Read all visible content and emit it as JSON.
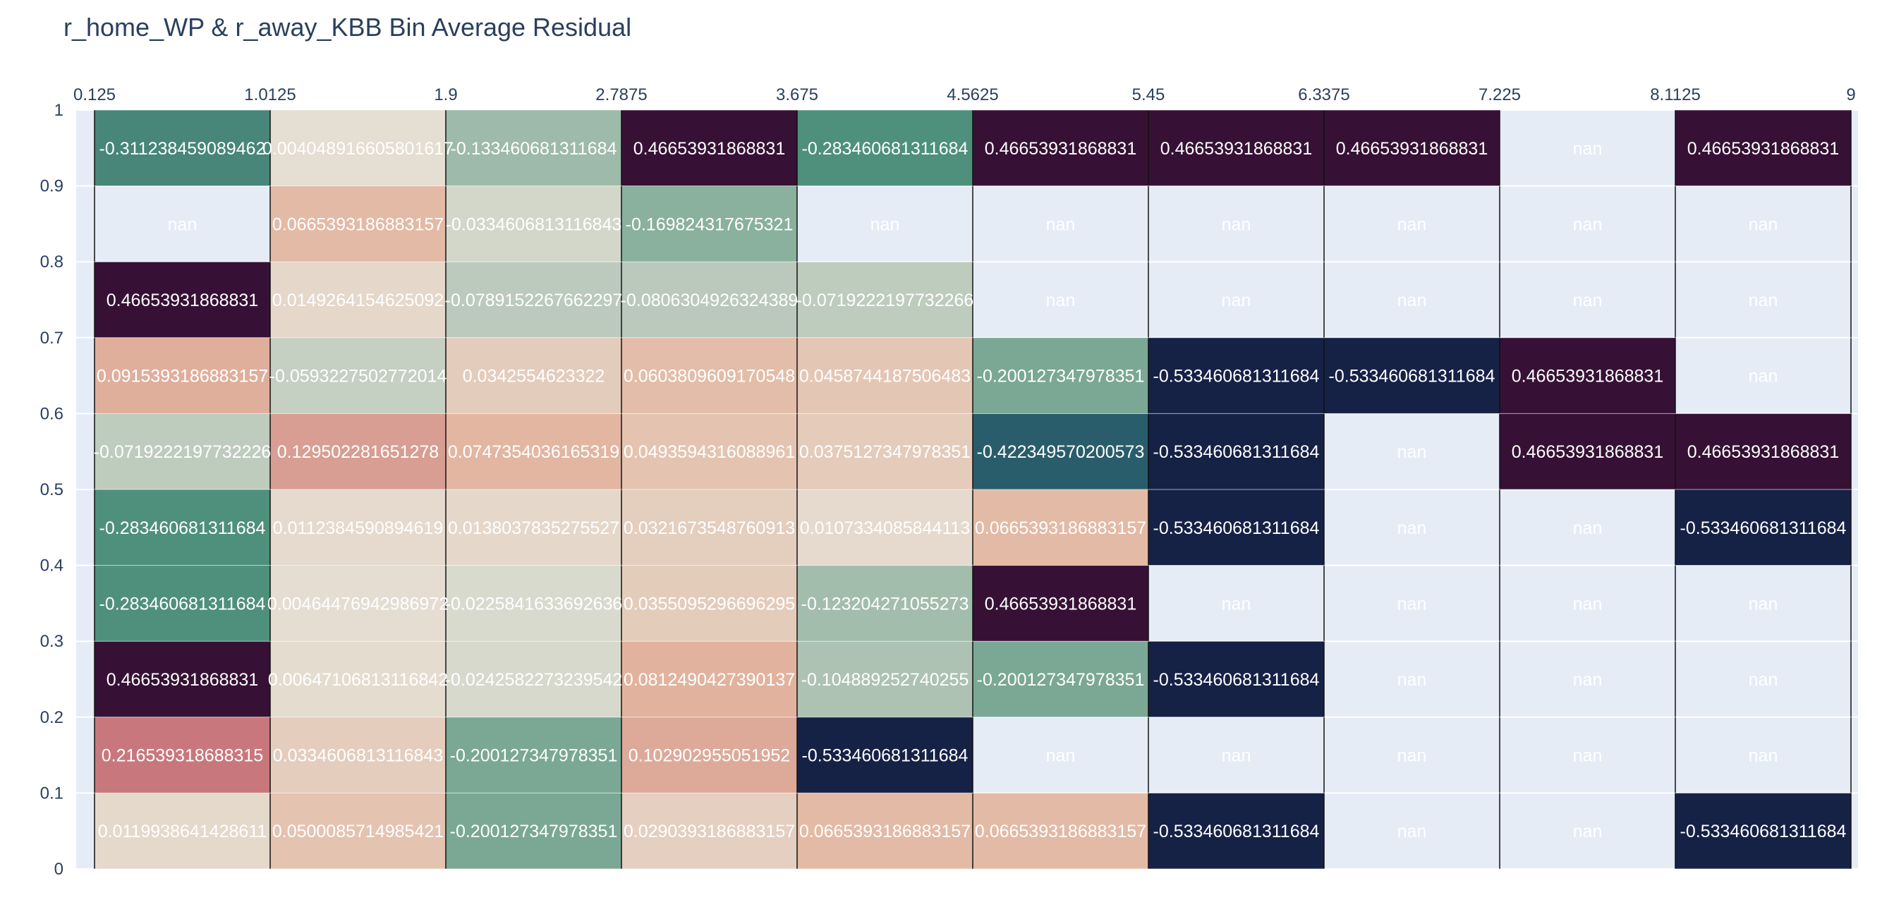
{
  "chart_data": {
    "type": "heatmap",
    "title": "r_home_WP & r_away_KBB Bin Average Residual",
    "xlabel": "",
    "ylabel": "",
    "x_ticks": [
      "0.125",
      "1.0125",
      "1.9",
      "2.7875",
      "3.675",
      "4.5625",
      "5.45",
      "6.3375",
      "7.225",
      "8.1125",
      "9"
    ],
    "x_tick_values": [
      0.125,
      1.0125,
      1.9,
      2.7875,
      3.675,
      4.5625,
      5.45,
      6.3375,
      7.225,
      8.1125,
      9
    ],
    "y_ticks": [
      "0",
      "0.1",
      "0.2",
      "0.3",
      "0.4",
      "0.5",
      "0.6",
      "0.7",
      "0.8",
      "0.9",
      "1"
    ],
    "y_tick_values": [
      0,
      0.1,
      0.2,
      0.3,
      0.4,
      0.5,
      0.6,
      0.7,
      0.8,
      0.9,
      1
    ],
    "x_axis_side": "top",
    "xlim": [
      0.125,
      9
    ],
    "ylim": [
      0,
      1
    ],
    "grid": true,
    "colorscale": "curl (diverging)",
    "missing_label": "nan",
    "colors": {
      "plot_bg": "#e5ecf6",
      "grid": "#ffffff",
      "text": "#2a3f5f",
      "cell_text": "#ffffff",
      "neg_strong": "#151d44",
      "neg_mid": "#2a5e6c",
      "neg_light": "#4f917b",
      "neutral": "#e5e0d5",
      "pos_light": "#e3b8a2",
      "pos_mid": "#c7777b",
      "pos_strong": "#341034"
    },
    "rows_top_to_bottom": [
      {
        "y_bin": "0.9–1",
        "cells": [
          "-0.311238459089462",
          "0.004048916605801617",
          "-0.133460681311684",
          "0.46653931868831",
          "-0.283460681311684",
          "0.46653931868831",
          "0.46653931868831",
          "0.46653931868831",
          "nan",
          "0.46653931868831"
        ]
      },
      {
        "y_bin": "0.8–0.9",
        "cells": [
          "nan",
          "0.0665393186883157",
          "-0.0334606813116843",
          "-0.169824317675321",
          "nan",
          "nan",
          "nan",
          "nan",
          "nan",
          "nan"
        ]
      },
      {
        "y_bin": "0.7–0.8",
        "cells": [
          "0.46653931868831",
          "0.0149264154625092",
          "-0.0789152267662297",
          "-0.0806304926324389",
          "-0.0719222197732266",
          "nan",
          "nan",
          "nan",
          "nan",
          "nan"
        ]
      },
      {
        "y_bin": "0.6–0.7",
        "cells": [
          "0.0915393186883157",
          "-0.0593227502772014",
          "0.0342554623322",
          "0.0603809609170548",
          "0.0458744187506483",
          "-0.200127347978351",
          "-0.533460681311684",
          "-0.533460681311684",
          "0.46653931868831",
          "nan"
        ]
      },
      {
        "y_bin": "0.5–0.6",
        "cells": [
          "-0.0719222197732226",
          "0.129502281651278",
          "0.0747354036165319",
          "0.0493594316088961",
          "0.0375127347978351",
          "-0.422349570200573",
          "-0.533460681311684",
          "nan",
          "0.46653931868831",
          "0.46653931868831"
        ]
      },
      {
        "y_bin": "0.4–0.5",
        "cells": [
          "-0.283460681311684",
          "0.0112384590894619",
          "0.0138037835275527",
          "0.0321673548760913",
          "0.0107334085844113",
          "0.0665393186883157",
          "-0.533460681311684",
          "nan",
          "nan",
          "-0.533460681311684"
        ]
      },
      {
        "y_bin": "0.3–0.4",
        "cells": [
          "-0.283460681311684",
          "0.00464476942986972",
          "-0.0225841633692636",
          "0.0355095296696295",
          "-0.123204271055273",
          "0.46653931868831",
          "nan",
          "nan",
          "nan",
          "nan"
        ]
      },
      {
        "y_bin": "0.2–0.3",
        "cells": [
          "0.46653931868831",
          "0.00647106813116842",
          "-0.0242582273239542",
          "0.0812490427390137",
          "-0.104889252740255",
          "-0.200127347978351",
          "-0.533460681311684",
          "nan",
          "nan",
          "nan"
        ]
      },
      {
        "y_bin": "0.1–0.2",
        "cells": [
          "0.216539318688315",
          "0.0334606813116843",
          "-0.200127347978351",
          "0.102902955051952",
          "-0.533460681311684",
          "nan",
          "nan",
          "nan",
          "nan",
          "nan"
        ]
      },
      {
        "y_bin": "0–0.1",
        "cells": [
          "0.0119938641428611",
          "0.0500085714985421",
          "-0.200127347978351",
          "0.0290393186883157",
          "0.0665393186883157",
          "0.0665393186883157",
          "-0.533460681311684",
          "nan",
          "nan",
          "-0.533460681311684"
        ]
      }
    ]
  }
}
